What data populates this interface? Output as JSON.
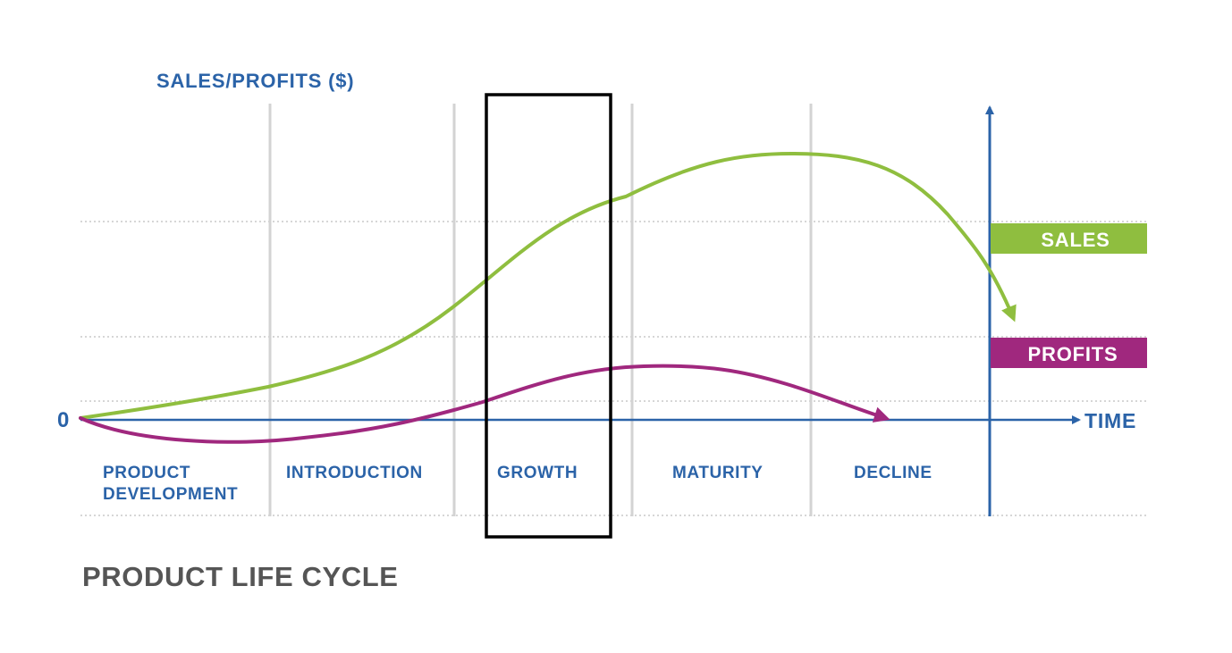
{
  "diagram": {
    "title": "PRODUCT LIFE CYCLE",
    "y_axis_label": "SALES/PROFITS ($)",
    "origin_label": "0",
    "x_axis_label": "TIME",
    "stages": [
      {
        "line1": "PRODUCT",
        "line2": "DEVELOPMENT"
      },
      {
        "line1": "INTRODUCTION",
        "line2": ""
      },
      {
        "line1": "GROWTH",
        "line2": ""
      },
      {
        "line1": "MATURITY",
        "line2": ""
      },
      {
        "line1": "DECLINE",
        "line2": ""
      }
    ],
    "highlighted_stage": "GROWTH",
    "legend": [
      {
        "label": "SALES",
        "color": "#8fbe3f"
      },
      {
        "label": "PROFITS",
        "color": "#a0287e"
      }
    ]
  },
  "colors": {
    "axis": "#2b63a8",
    "sales": "#8fbe3f",
    "profits": "#a0287e",
    "divider": "#d3d3d3",
    "gridline": "#c8c8c8",
    "title": "#555555",
    "highlight_box": "#000000"
  }
}
